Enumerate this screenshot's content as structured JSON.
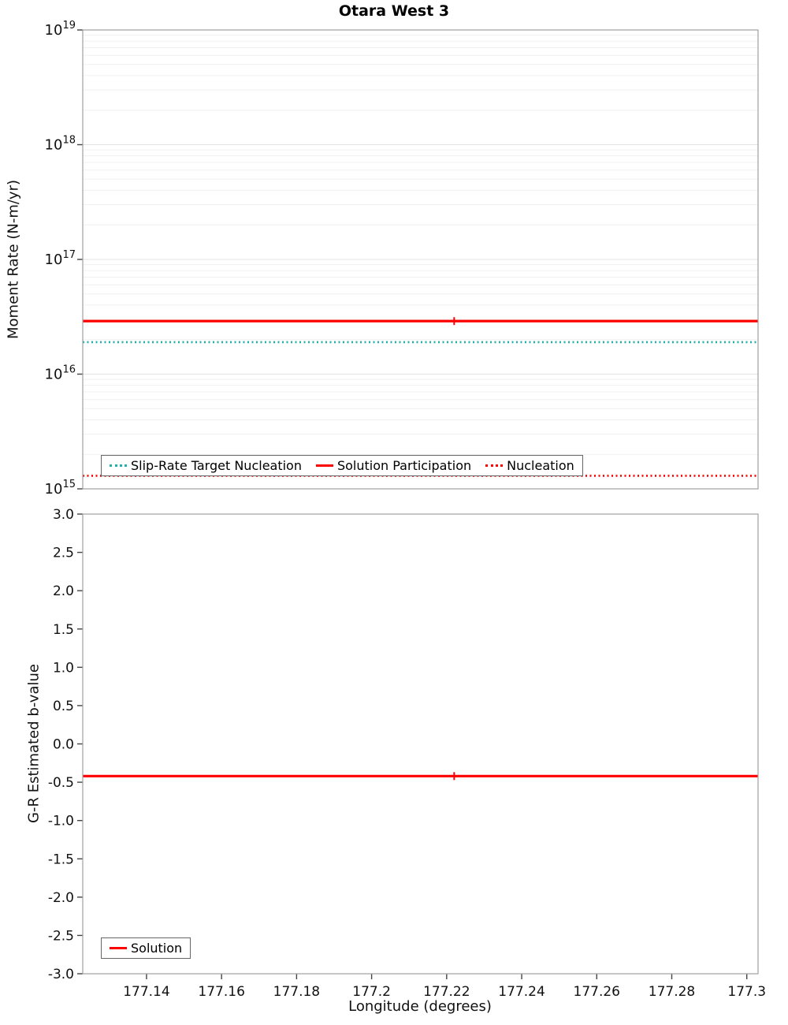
{
  "title": "Otara West 3",
  "chart_data": [
    {
      "type": "line",
      "name": "moment-rate-panel",
      "title": "Otara West 3",
      "ylabel": "Moment Rate (N-m/yr)",
      "yscale": "log",
      "ylim_exp": [
        15,
        19
      ],
      "y_tick_exponents": [
        "15",
        "16",
        "17",
        "18",
        "19"
      ],
      "xlim": [
        177.123,
        177.303
      ],
      "grid": "minor-horizontal",
      "legend_position": "bottom-left-inside",
      "series": [
        {
          "name": "Slip-Rate Target Nucleation",
          "color": "#20b2aa",
          "style": "dotted",
          "y": 1.9e+16
        },
        {
          "name": "Solution Participation",
          "color": "#ff0000",
          "style": "solid",
          "y": 2.9e+16,
          "marker_x": 177.222
        },
        {
          "name": "Nucleation",
          "color": "#ff0000",
          "style": "dotted",
          "y": 1300000000000000.0
        }
      ]
    },
    {
      "type": "line",
      "name": "b-value-panel",
      "ylabel": "G-R Estimated b-value",
      "xlabel": "Longitude (degrees)",
      "ylim": [
        -3.0,
        3.0
      ],
      "y_ticks": [
        "3.0",
        "2.5",
        "2.0",
        "1.5",
        "1.0",
        "0.5",
        "0.0",
        "-0.5",
        "-1.0",
        "-1.5",
        "-2.0",
        "-2.5",
        "-3.0"
      ],
      "xlim": [
        177.123,
        177.303
      ],
      "x_ticks": [
        {
          "value": 177.14,
          "label": "177.14"
        },
        {
          "value": 177.16,
          "label": "177.16"
        },
        {
          "value": 177.18,
          "label": "177.18"
        },
        {
          "value": 177.2,
          "label": "177.2"
        },
        {
          "value": 177.22,
          "label": "177.22"
        },
        {
          "value": 177.24,
          "label": "177.24"
        },
        {
          "value": 177.26,
          "label": "177.26"
        },
        {
          "value": 177.28,
          "label": "177.28"
        },
        {
          "value": 177.3,
          "label": "177.3"
        }
      ],
      "grid": "none",
      "legend_position": "bottom-left-inside",
      "series": [
        {
          "name": "Solution",
          "color": "#ff0000",
          "style": "solid",
          "y": -0.42,
          "marker_x": 177.222
        }
      ]
    }
  ]
}
